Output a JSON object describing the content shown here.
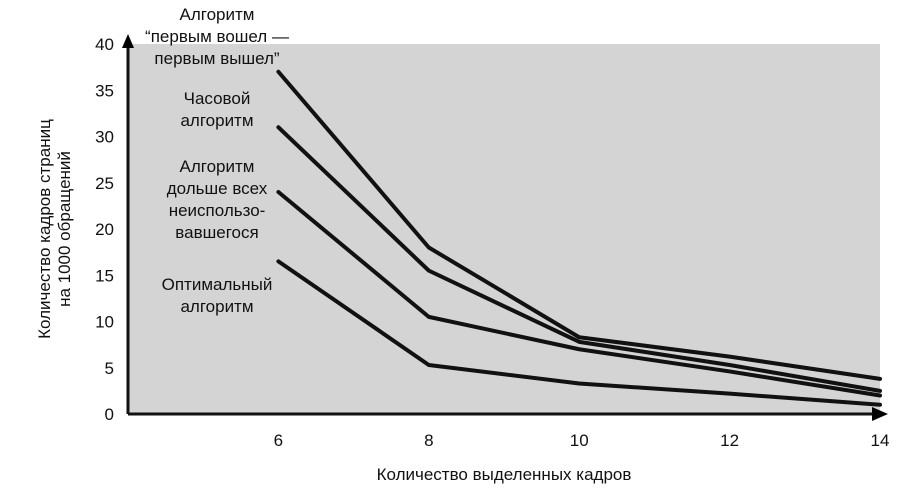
{
  "chart_data": {
    "type": "line",
    "title": "",
    "xlabel": "Количество выделенных кадров",
    "ylabel_lines": [
      "Количество кадров страниц",
      "на 1000 обращений"
    ],
    "x": [
      6,
      8,
      10,
      12,
      14
    ],
    "xlim": [
      4,
      14
    ],
    "ylim": [
      0,
      40
    ],
    "x_ticks": [
      "6",
      "8",
      "10",
      "12",
      "14"
    ],
    "y_ticks": [
      "0",
      "5",
      "10",
      "15",
      "20",
      "25",
      "30",
      "35",
      "40"
    ],
    "grid": false,
    "series": [
      {
        "name": "Алгоритм “первым вошел — первым вышел”",
        "label_lines": [
          "Алгоритм",
          "“первым вошел —",
          "первым вышел”"
        ],
        "values": [
          37,
          18,
          8.3,
          6.2,
          3.8
        ]
      },
      {
        "name": "Часовой алгоритм",
        "label_lines": [
          "Часовой",
          "алгоритм"
        ],
        "values": [
          31,
          15.5,
          7.8,
          5.3,
          2.5
        ]
      },
      {
        "name": "Алгоритм дольше всех неиспользовавшегося",
        "label_lines": [
          "Алгоритм",
          "дольше всех",
          "неиспользо-",
          "вавшегося"
        ],
        "values": [
          24,
          10.5,
          7,
          4.6,
          2
        ]
      },
      {
        "name": "Оптимальный алгоритм",
        "label_lines": [
          "Оптимальный",
          "алгоритм"
        ],
        "values": [
          16.5,
          5.3,
          3.3,
          2.2,
          1
        ]
      }
    ],
    "plot_background": "#d4d4d4",
    "line_color": "#111111"
  }
}
